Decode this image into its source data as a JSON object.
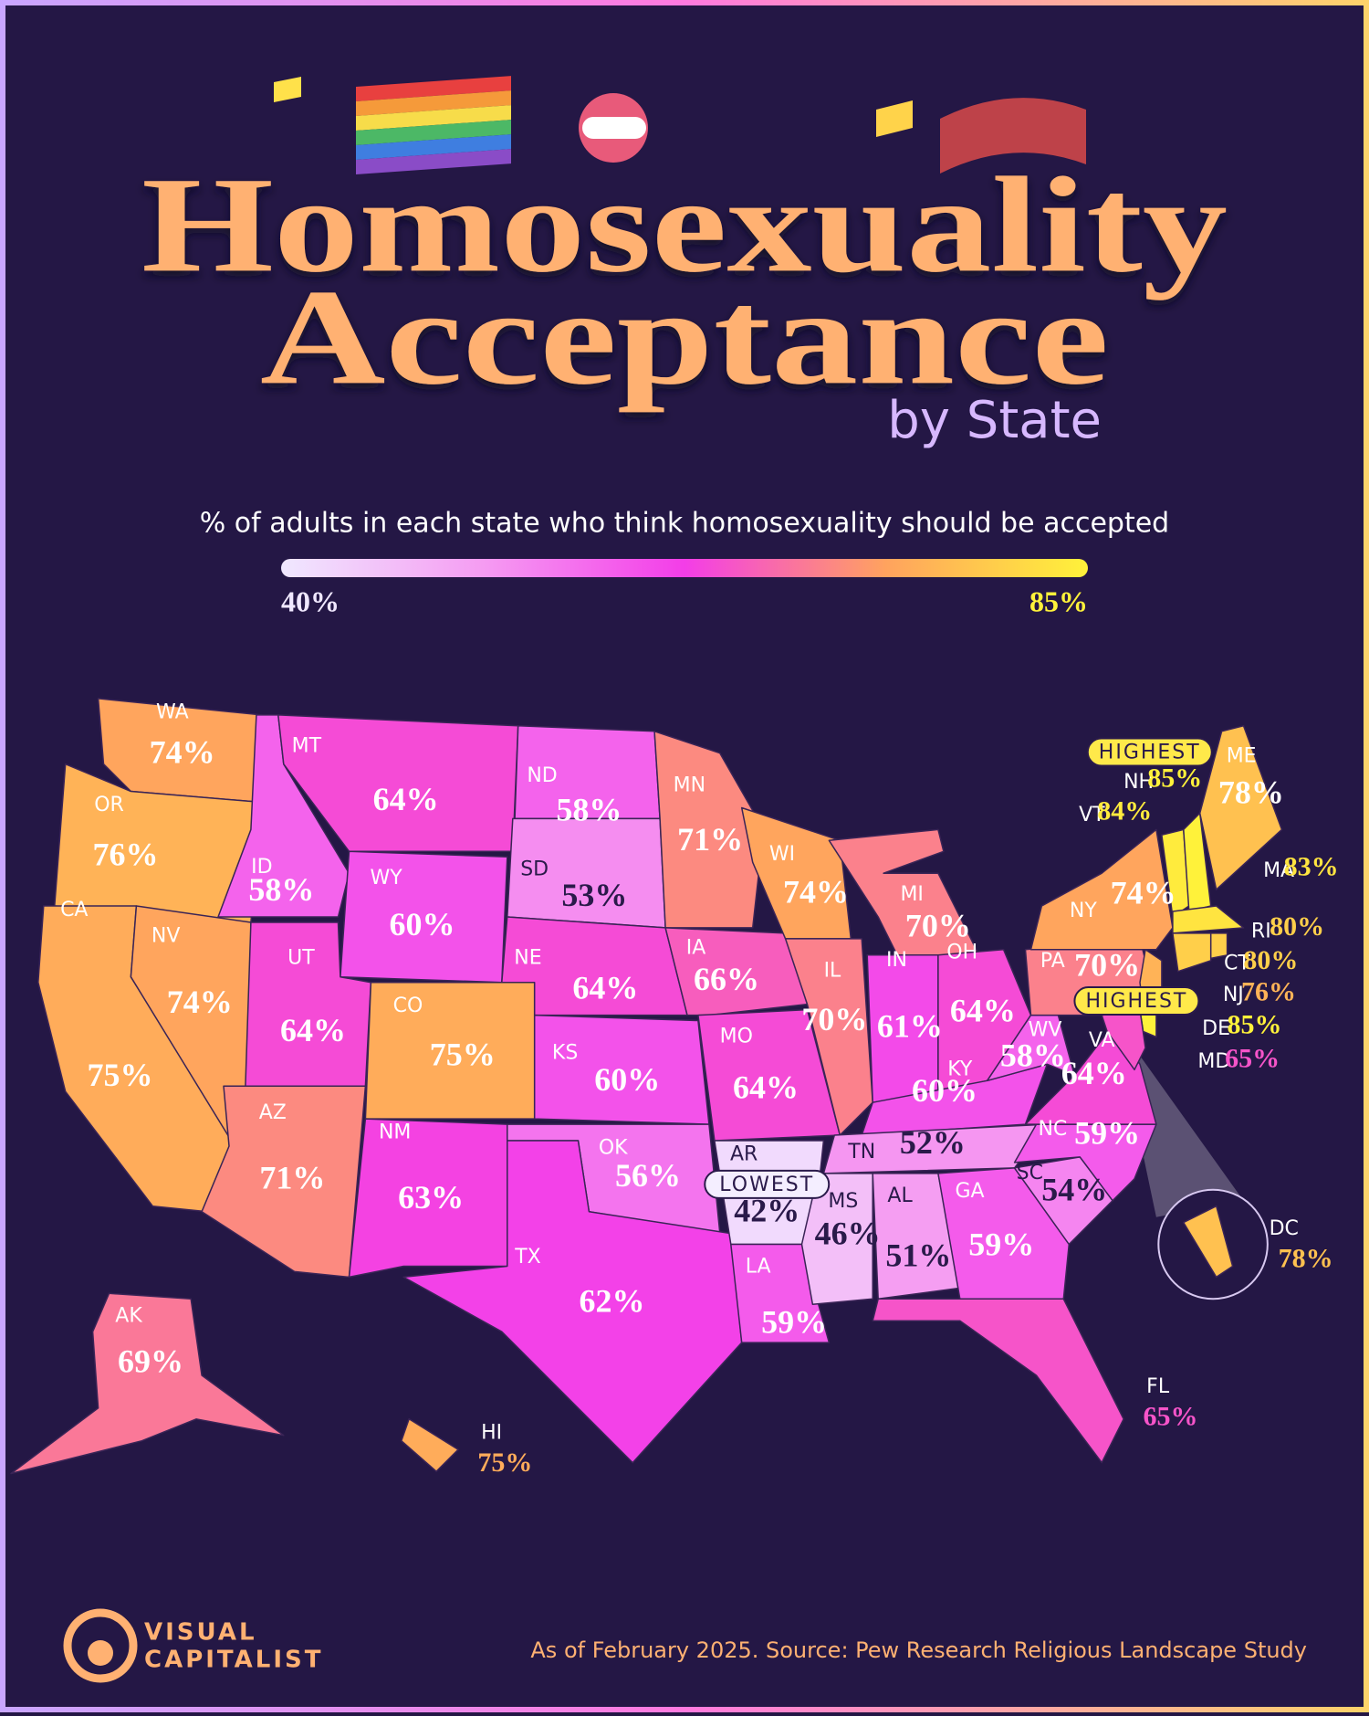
{
  "chart_data": {
    "type": "choropleth",
    "title": [
      "Homosexuality",
      "Acceptance"
    ],
    "subtitle": "by State",
    "legend_title": "% of adults in each state who think homosexuality should be accepted",
    "clim": [
      40,
      85
    ],
    "colorbar_ticks": [
      {
        "value": 40,
        "label": "40%"
      },
      {
        "value": 85,
        "label": "85%"
      }
    ],
    "color_scale": [
      "#f0e8ff",
      "#f59cf2",
      "#f33de8",
      "#ffa35e",
      "#fff23a"
    ],
    "categories": [
      "WA",
      "OR",
      "CA",
      "NV",
      "ID",
      "MT",
      "WY",
      "UT",
      "CO",
      "AZ",
      "NM",
      "ND",
      "SD",
      "NE",
      "KS",
      "OK",
      "TX",
      "MN",
      "IA",
      "MO",
      "AR",
      "LA",
      "WI",
      "IL",
      "MI",
      "IN",
      "OH",
      "KY",
      "TN",
      "MS",
      "AL",
      "GA",
      "FL",
      "SC",
      "NC",
      "VA",
      "WV",
      "PA",
      "NY",
      "VT",
      "NH",
      "ME",
      "MA",
      "RI",
      "CT",
      "NJ",
      "DE",
      "MD",
      "DC",
      "AK",
      "HI"
    ],
    "values": [
      74,
      76,
      75,
      74,
      58,
      64,
      60,
      64,
      75,
      71,
      63,
      58,
      53,
      64,
      60,
      56,
      62,
      71,
      66,
      64,
      42,
      59,
      74,
      70,
      70,
      61,
      64,
      60,
      52,
      46,
      51,
      59,
      65,
      54,
      59,
      64,
      58,
      70,
      74,
      84,
      85,
      78,
      83,
      80,
      80,
      76,
      85,
      65,
      78,
      69,
      75
    ],
    "value_labels": [
      "74%",
      "76%",
      "75%",
      "74%",
      "58%",
      "64%",
      "60%",
      "64%",
      "75%",
      "71%",
      "63%",
      "58%",
      "53%",
      "64%",
      "60%",
      "56%",
      "62%",
      "71%",
      "66%",
      "64%",
      "42%",
      "59%",
      "74%",
      "70%",
      "70%",
      "61%",
      "64%",
      "60%",
      "52%",
      "46%",
      "51%",
      "59%",
      "65%",
      "54%",
      "59%",
      "64%",
      "58%",
      "70%",
      "74%",
      "84%",
      "85%",
      "78%",
      "83%",
      "80%",
      "80%",
      "76%",
      "85%",
      "65%",
      "78%",
      "69%",
      "75%"
    ],
    "annotations": [
      "HIGHEST",
      "HIGHEST",
      "LOWEST"
    ]
  },
  "footer": {
    "brand": [
      "VISUAL",
      "CAPITALIST"
    ],
    "source": "As of February 2025. Source: Pew Research Religious Landscape Study"
  }
}
